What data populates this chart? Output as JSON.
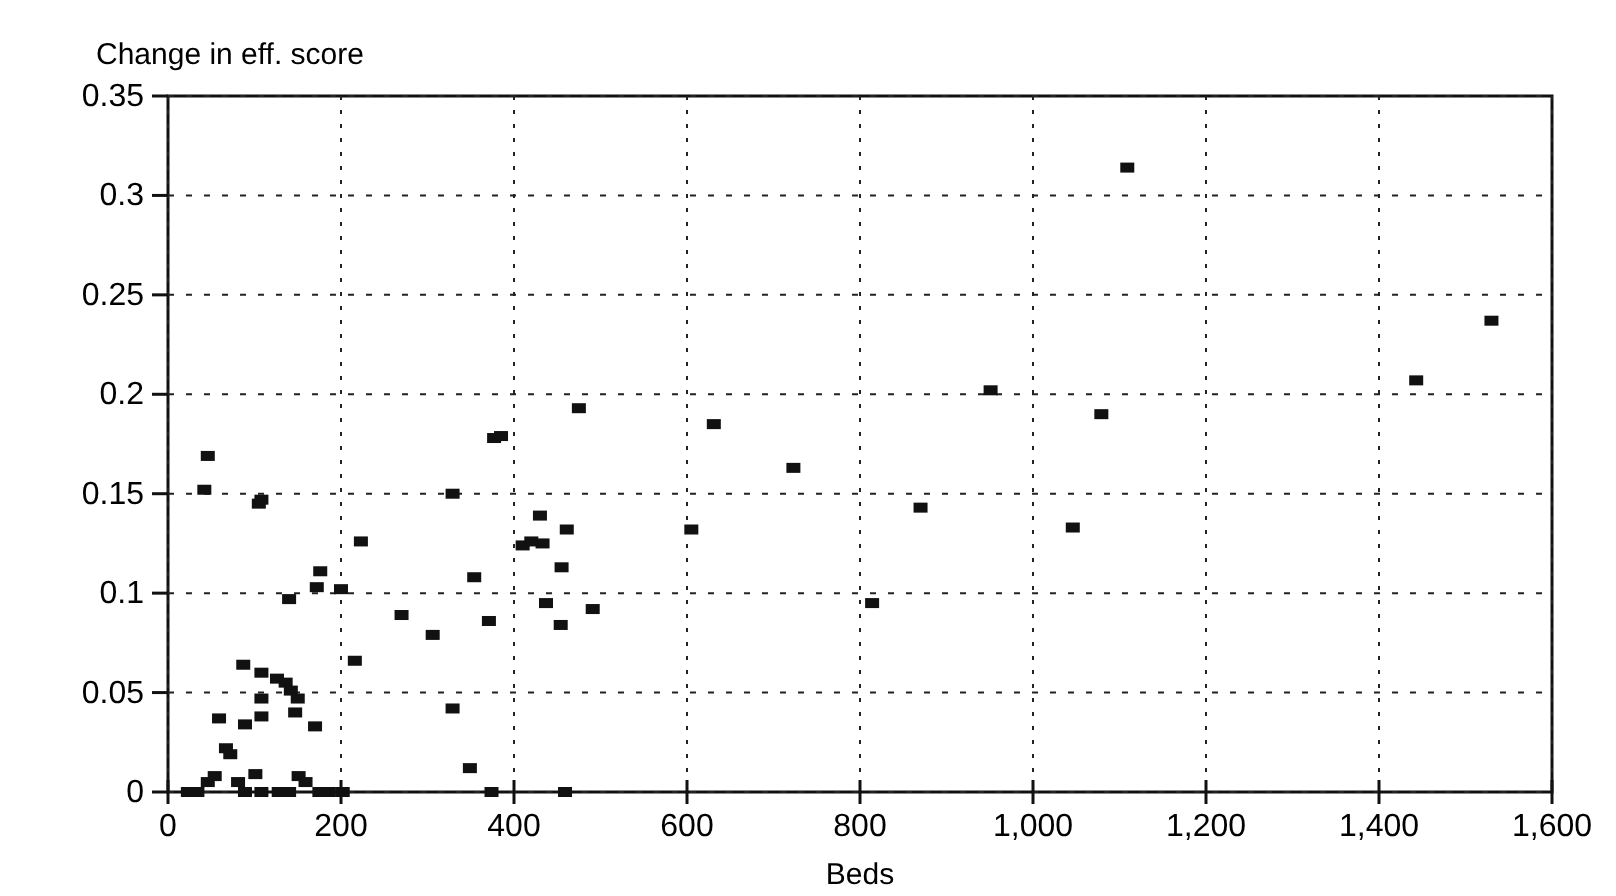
{
  "chart_data": {
    "type": "scatter",
    "xlabel": "Beds",
    "ylabel": "Change in eff. score",
    "marker": "square",
    "grid": true,
    "xlim": [
      0,
      1600
    ],
    "xticks": [
      0,
      200,
      400,
      600,
      800,
      {
        "value": 1000,
        "label": "1,000"
      },
      {
        "value": 1200,
        "label": "1,200"
      },
      {
        "value": 1400,
        "label": "1,400"
      },
      {
        "value": 1600,
        "label": "1,600"
      }
    ],
    "ylim": [
      0,
      0.35
    ],
    "yticks": [
      {
        "value": 0,
        "label": "0"
      },
      0.05,
      {
        "value": 0.1,
        "label": "0.1"
      },
      0.15,
      {
        "value": 0.2,
        "label": "0.2"
      },
      0.25,
      {
        "value": 0.3,
        "label": "0.3"
      },
      0.35
    ],
    "series": [
      {
        "color": "#111111",
        "x": [
          46,
          42,
          105,
          108,
          475,
          377,
          385,
          329,
          223,
          176,
          172,
          200,
          140,
          430,
          410,
          420,
          433,
          461,
          455,
          354,
          437,
          491,
          270,
          371,
          454,
          306,
          216,
          87,
          108,
          126,
          136,
          142,
          150,
          108,
          147,
          108,
          59,
          89,
          170,
          329,
          67,
          72,
          349,
          23,
          34,
          46,
          54,
          81,
          89,
          101,
          108,
          128,
          140,
          151,
          159,
          175,
          186,
          202,
          374,
          459,
          631,
          723,
          605,
          870,
          951,
          814,
          1079,
          1046,
          1109,
          1530,
          1443
        ],
        "values": [
          0.169,
          0.152,
          0.145,
          0.147,
          0.193,
          0.178,
          0.179,
          0.15,
          0.126,
          0.111,
          0.103,
          0.102,
          0.097,
          0.139,
          0.124,
          0.126,
          0.125,
          0.132,
          0.113,
          0.108,
          0.095,
          0.092,
          0.089,
          0.086,
          0.084,
          0.079,
          0.066,
          0.064,
          0.06,
          0.057,
          0.055,
          0.051,
          0.047,
          0.047,
          0.04,
          0.038,
          0.037,
          0.034,
          0.033,
          0.042,
          0.022,
          0.019,
          0.012,
          0,
          0,
          0.005,
          0.008,
          0.005,
          0,
          0.009,
          0,
          0,
          0,
          0.008,
          0.005,
          0,
          0,
          0,
          0,
          0,
          0.185,
          0.163,
          0.132,
          0.143,
          0.202,
          0.095,
          0.19,
          0.133,
          0.314,
          0.237,
          0.207
        ]
      }
    ]
  }
}
